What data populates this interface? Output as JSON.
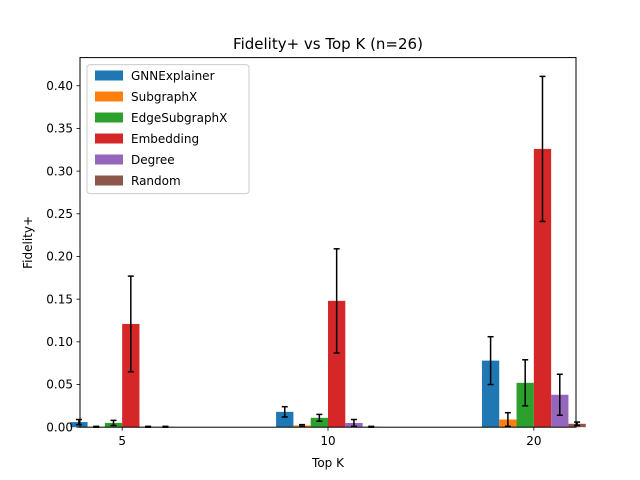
{
  "chart_data": {
    "type": "bar",
    "title": "Fidelity+ vs Top K (n=26)",
    "xlabel": "Top K",
    "ylabel": "Fidelity+",
    "categories": [
      "5",
      "10",
      "20"
    ],
    "ylim": [
      0,
      0.433
    ],
    "yticks": [
      "0.00",
      "0.05",
      "0.10",
      "0.15",
      "0.20",
      "0.25",
      "0.30",
      "0.35",
      "0.40"
    ],
    "grid": false,
    "legend_position": "top-left",
    "series": [
      {
        "name": "GNNExplainer",
        "color": "#1f77b4",
        "values": [
          0.006,
          0.018,
          0.078
        ],
        "errors": [
          0.003,
          0.006,
          0.028
        ]
      },
      {
        "name": "SubgraphX",
        "color": "#ff7f0e",
        "values": [
          0.0005,
          0.002,
          0.009
        ],
        "errors": [
          0.0005,
          0.001,
          0.008
        ]
      },
      {
        "name": "EdgeSubgraphX",
        "color": "#2ca02c",
        "values": [
          0.005,
          0.011,
          0.052
        ],
        "errors": [
          0.003,
          0.004,
          0.027
        ]
      },
      {
        "name": "Embedding",
        "color": "#d62728",
        "values": [
          0.121,
          0.148,
          0.326
        ],
        "errors": [
          0.056,
          0.061,
          0.085
        ]
      },
      {
        "name": "Degree",
        "color": "#9467bd",
        "values": [
          0.0005,
          0.005,
          0.038
        ],
        "errors": [
          0.0005,
          0.004,
          0.024
        ]
      },
      {
        "name": "Random",
        "color": "#8c564b",
        "values": [
          0.0005,
          0.0005,
          0.004
        ],
        "errors": [
          0.0005,
          0.0005,
          0.002
        ]
      }
    ]
  }
}
